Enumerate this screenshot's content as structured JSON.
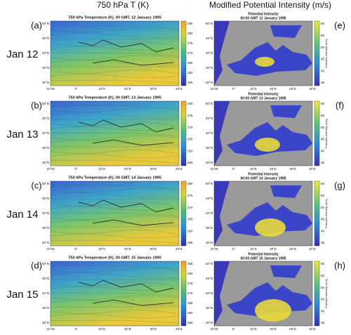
{
  "columns": [
    "750 hPa T (K)",
    "Modified Potential Intensity (m/s)"
  ],
  "left_map": {
    "lat_ticks": [
      "50°N",
      "45°N",
      "40°N",
      "35°N",
      "30°N"
    ],
    "lon_ticks": [
      "10°W",
      "0°",
      "10°E",
      "20°E",
      "30°E",
      "40°E"
    ]
  },
  "right_map": {
    "lat_ticks": [
      "50°N",
      "45°N",
      "40°N",
      "35°N",
      "30°N"
    ],
    "lon_ticks": [
      "10°W",
      "0°",
      "10°E",
      "20°E",
      "30°E",
      "40°E"
    ],
    "colorbar_ticks": [
      "60",
      "55",
      "50",
      "45",
      "40",
      "35"
    ],
    "colorbar_label": "Potential Intensity (m/s)"
  },
  "rows": [
    {
      "label": "Jan 12",
      "left_letter": "(a)",
      "right_letter": "(e)",
      "left_title": "750 hPa Temperature (K), 00 GMT, 12 January 1995",
      "right_title": [
        "Potential Intensity",
        "00:00 GMT 12 January 1995"
      ],
      "left_colorbar_ticks": [
        "285",
        "280",
        "275",
        "270",
        "265",
        "260",
        "255"
      ]
    },
    {
      "label": "Jan 13",
      "left_letter": "(b)",
      "right_letter": "(f)",
      "left_title": "750 hPa Temperature (K), 00 GMT, 13 January 1995",
      "right_title": [
        "Potential Intensity",
        "00:00 GMT 13 January 1995"
      ],
      "left_colorbar_ticks": [
        "280",
        "275",
        "270",
        "265",
        "260",
        "255"
      ]
    },
    {
      "label": "Jan 14",
      "left_letter": "(c)",
      "right_letter": "(g)",
      "left_title": "750 hPa Temperature (K), 00 GMT, 14 January 1995",
      "right_title": [
        "Potential Intensity",
        "00:00 GMT 14 January 1995"
      ],
      "left_colorbar_ticks": [
        "280",
        "275",
        "270",
        "265",
        "260",
        "255"
      ]
    },
    {
      "label": "Jan 15",
      "left_letter": "(d)",
      "right_letter": "(h)",
      "left_title": "750 hPa Temperature (K), 00 GMT, 15 January 1995",
      "right_title": [
        "Potential Intensity",
        "00:00 GMT 15 January 1995"
      ],
      "left_colorbar_ticks": [
        "285",
        "280",
        "275",
        "270",
        "265",
        "260",
        "255"
      ]
    }
  ]
}
